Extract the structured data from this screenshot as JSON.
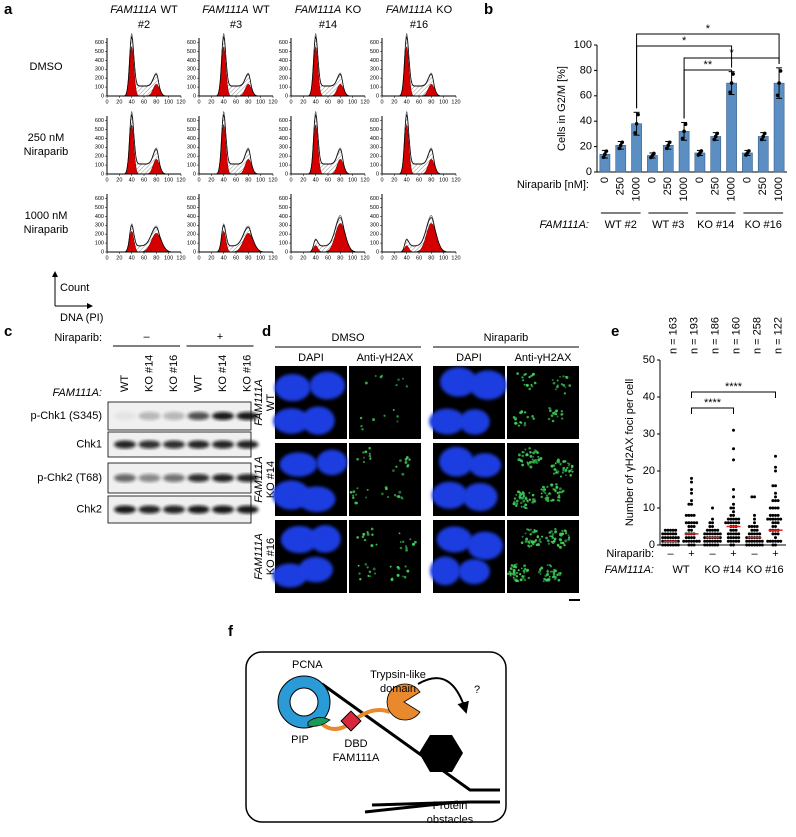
{
  "figure": {
    "panel_a": {
      "letter": "a",
      "columns": [
        {
          "gene": "FAM111A",
          "line1": "WT",
          "line2": "#2"
        },
        {
          "gene": "FAM111A",
          "line1": "WT",
          "line2": "#3"
        },
        {
          "gene": "FAM111A",
          "line1": "KO",
          "line2": "#14"
        },
        {
          "gene": "FAM111A",
          "line1": "KO",
          "line2": "#16"
        }
      ],
      "rows": [
        [
          "DMSO"
        ],
        [
          "250 nM",
          "Niraparib"
        ],
        [
          "1000 nM",
          "Niraparib"
        ]
      ],
      "ylim": [
        0,
        650
      ],
      "yticks": [
        0,
        100,
        200,
        300,
        400,
        500,
        600
      ],
      "xlim": [
        0,
        120
      ],
      "xticks": [
        0,
        20,
        40,
        60,
        80,
        100,
        120
      ],
      "y_axis": "Count",
      "x_axis": "DNA (PI)"
    },
    "panel_b": {
      "letter": "b",
      "y_label": "Cells in G2/M [%]",
      "ylim": [
        0,
        100
      ],
      "yticks": [
        0,
        20,
        40,
        60,
        80,
        100
      ],
      "doses": [
        "0",
        "250",
        "1000"
      ],
      "dose_label": "Niraparib [nM]:",
      "gene_label": "FAM111A:",
      "color": "#5b8fc4",
      "groups": [
        {
          "name": "WT #2",
          "values": [
            14,
            21,
            38
          ],
          "errors": [
            3,
            3,
            9
          ]
        },
        {
          "name": "WT #3",
          "values": [
            13,
            21,
            32
          ],
          "errors": [
            2,
            3,
            7
          ]
        },
        {
          "name": "KO #14",
          "values": [
            15,
            28,
            70
          ],
          "errors": [
            2,
            3,
            9
          ]
        },
        {
          "name": "KO #16",
          "values": [
            15,
            28,
            70
          ],
          "errors": [
            2,
            3,
            12
          ]
        }
      ],
      "significance": [
        {
          "label": "*",
          "groups": [
            0,
            3
          ]
        },
        {
          "label": "*",
          "groups": [
            0,
            2
          ]
        },
        {
          "label": "*",
          "groups": [
            1,
            3
          ]
        },
        {
          "label": "**",
          "groups": [
            1,
            2
          ]
        }
      ]
    },
    "panel_c": {
      "letter": "c",
      "treatment_label": "Niraparib:",
      "treatments": [
        "–",
        "+"
      ],
      "gene_label": "FAM111A:",
      "lanes": [
        "WT",
        "KO #14",
        "KO #16",
        "WT",
        "KO #14",
        "KO #16"
      ],
      "blots": [
        "p-Chk1 (S345)",
        "Chk1",
        "p-Chk2 (T68)",
        "Chk2"
      ]
    },
    "panel_d": {
      "letter": "d",
      "treatments": [
        "DMSO",
        "Niraparib"
      ],
      "channels": [
        "DAPI",
        "Anti-γH2AX",
        "DAPI",
        "Anti-γH2AX"
      ],
      "rows": [
        {
          "gene": "FAM111A",
          "line": "WT"
        },
        {
          "gene": "FAM111A",
          "line": "KO #14"
        },
        {
          "gene": "FAM111A",
          "line": "KO #16"
        }
      ]
    },
    "panel_e": {
      "letter": "e",
      "y_label": "Number of γH2AX foci per cell",
      "ylim": [
        0,
        50
      ],
      "yticks": [
        0,
        10,
        20,
        30,
        40,
        50
      ],
      "n_labels": [
        "n = 163",
        "n = 193",
        "n = 186",
        "n = 160",
        "n = 258",
        "n = 122"
      ],
      "treatment_label": "Niraparib:",
      "treatments": [
        "–",
        "+",
        "–",
        "+",
        "–",
        "+"
      ],
      "gene_label": "FAM111A:",
      "groups": [
        "WT",
        "KO #14",
        "KO #16"
      ],
      "medians": [
        1,
        3,
        2,
        5,
        2,
        4
      ],
      "significance": [
        {
          "label": "****",
          "columns": [
            1,
            5
          ]
        },
        {
          "label": "****",
          "columns": [
            1,
            3
          ]
        }
      ]
    },
    "panel_f": {
      "letter": "f",
      "pcna": "PCNA",
      "domain": [
        "Trypsin-like",
        "domain"
      ],
      "pip": "PIP",
      "dbd": "DBD",
      "protein": "FAM111A",
      "obstacles": [
        "Protein",
        "obstacles"
      ],
      "question": "?"
    }
  }
}
